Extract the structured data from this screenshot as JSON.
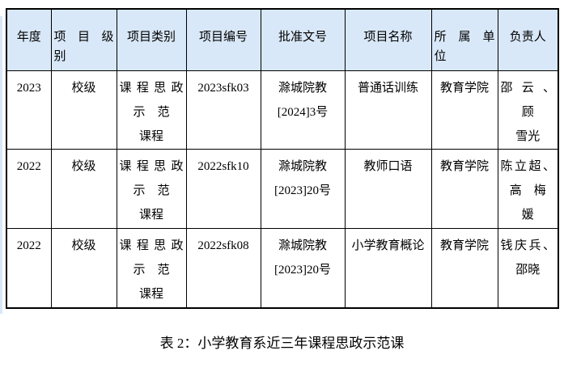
{
  "colors": {
    "header_bg": "#d9e8f8",
    "border": "#000000",
    "text": "#000000",
    "page_bg": "#ffffff"
  },
  "table": {
    "header": [
      {
        "l1": "年度"
      },
      {
        "l1": "项目级",
        "l2": "别"
      },
      {
        "l1": "项目类别"
      },
      {
        "l1": "项目编号"
      },
      {
        "l1": "批准文号"
      },
      {
        "l1": "项目名称"
      },
      {
        "l1": "所属单",
        "l2": "位"
      },
      {
        "l1": "负责人"
      }
    ],
    "rows": [
      {
        "cells": [
          [
            "2023"
          ],
          [
            "校级"
          ],
          [
            "课程思政",
            "示　范",
            "课程"
          ],
          [
            "2023sfk03"
          ],
          [
            "滁城院教",
            "[2024]3号"
          ],
          [
            "普通话训练"
          ],
          [
            "教育学院"
          ],
          [
            "邵云、",
            "顾",
            "雪光"
          ]
        ]
      },
      {
        "cells": [
          [
            "2022"
          ],
          [
            "校级"
          ],
          [
            "课程思政",
            "示　范",
            "课程"
          ],
          [
            "2022sfk10"
          ],
          [
            "滁城院教",
            "[2023]20号"
          ],
          [
            "教师口语"
          ],
          [
            "教育学院"
          ],
          [
            "陈立超、",
            "高　梅",
            "媛"
          ]
        ]
      },
      {
        "cells": [
          [
            "2022"
          ],
          [
            "校级"
          ],
          [
            "课程思政",
            "示　范",
            "课程"
          ],
          [
            "2022sfk08"
          ],
          [
            "滁城院教",
            "[2023]20号"
          ],
          [
            "小学教育概论"
          ],
          [
            "教育学院"
          ],
          [
            "钱庆兵、",
            "邵晓"
          ]
        ]
      }
    ]
  },
  "caption": "表 2：小学教育系近三年课程思政示范课"
}
